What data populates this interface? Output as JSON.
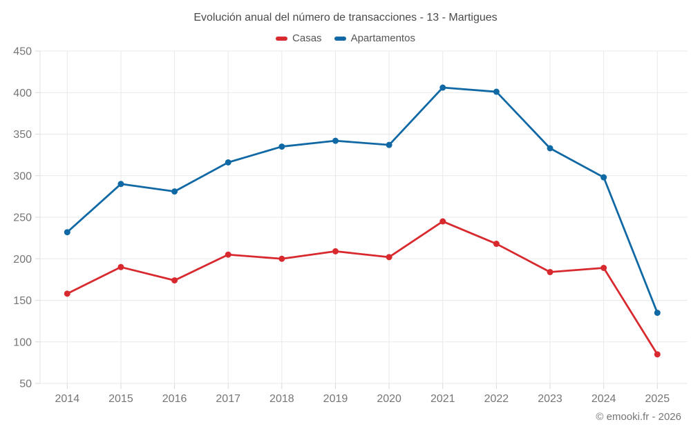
{
  "chart_data": {
    "type": "line",
    "title": "Evolución anual del número de transacciones - 13 - Martigues",
    "categories": [
      "2014",
      "2015",
      "2016",
      "2017",
      "2018",
      "2019",
      "2020",
      "2021",
      "2022",
      "2023",
      "2024",
      "2025"
    ],
    "series": [
      {
        "name": "Casas",
        "color": "#d8292f",
        "values": [
          158,
          190,
          174,
          205,
          200,
          209,
          202,
          245,
          218,
          184,
          189,
          85
        ]
      },
      {
        "name": "Apartamentos",
        "color": "#1069a5",
        "values": [
          232,
          290,
          281,
          316,
          335,
          342,
          337,
          406,
          401,
          333,
          298,
          135
        ]
      }
    ],
    "xlabel": "",
    "ylabel": "",
    "ylim": [
      50,
      450
    ],
    "ytick_step": 50,
    "yticks": [
      50,
      100,
      150,
      200,
      250,
      300,
      350,
      400,
      450
    ],
    "grid": true,
    "legend_position": "top"
  },
  "footer": {
    "credit": "© emooki.fr - 2026"
  },
  "colors": {
    "background": "#ffffff",
    "grid": "#e9e9e9",
    "axis_line": "#e0e0e0",
    "tick": "#d9d9d9",
    "axis_label": "#757575",
    "title_text": "#4a4a4a",
    "legend_text": "#555555",
    "footer_text": "#757575"
  }
}
